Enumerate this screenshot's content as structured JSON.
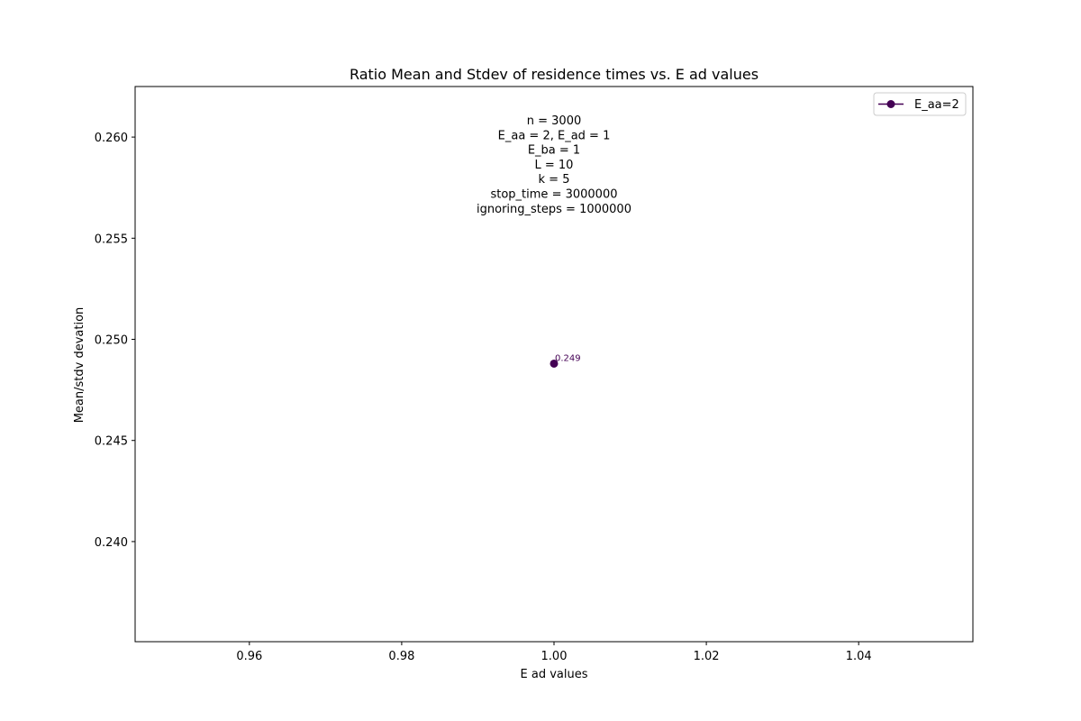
{
  "chart_data": {
    "type": "line",
    "title": "Ratio Mean and Stdev of residence times vs. E ad values",
    "xlabel": "E ad values",
    "ylabel": "Mean/stdv devation",
    "xlim": [
      0.945,
      1.055
    ],
    "ylim": [
      0.23505,
      0.2625
    ],
    "x_ticks": [
      0.96,
      0.98,
      1.0,
      1.02,
      1.04
    ],
    "x_tick_labels": [
      "0.96",
      "0.98",
      "1.00",
      "1.02",
      "1.04"
    ],
    "y_ticks": [
      0.24,
      0.245,
      0.25,
      0.255,
      0.26
    ],
    "y_tick_labels": [
      "0.240",
      "0.245",
      "0.250",
      "0.255",
      "0.260"
    ],
    "grid": false,
    "legend_position": "top-right",
    "series": [
      {
        "name": "E_aa=2",
        "color": "#440154",
        "marker": "circle",
        "x": [
          1.0
        ],
        "y": [
          0.2488
        ],
        "point_labels": [
          "0.249"
        ]
      }
    ],
    "annotation_lines": [
      "n = 3000",
      "E_aa = 2, E_ad = 1",
      "E_ba = 1",
      "L = 10",
      "k = 5",
      "stop_time = 3000000",
      "ignoring_steps = 1000000"
    ]
  }
}
